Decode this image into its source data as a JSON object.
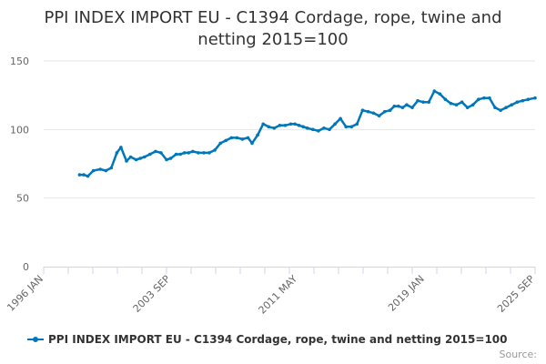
{
  "chart_data": {
    "type": "line",
    "title_line1": "PPI INDEX IMPORT EU - C1394 Cordage, rope, twine and",
    "title_line2": "netting 2015=100",
    "xlabel": "",
    "ylabel": "",
    "x_tick_labels": [
      "1996 JAN",
      "2003 SEP",
      "2011 MAY",
      "2019 JAN",
      "2025 SEP"
    ],
    "y_ticks": [
      0,
      50,
      100,
      150
    ],
    "ylim": [
      0,
      150
    ],
    "grid": "horizontal",
    "legend_placement": "bottom-left",
    "series": [
      {
        "name": "PPI INDEX IMPORT EU - C1394 Cordage, rope, twine and netting 2015=100",
        "color": "#0077bb",
        "x": [
          "1998-03",
          "1998-06",
          "1998-09",
          "1999-01",
          "1999-06",
          "1999-10",
          "2000-02",
          "2000-06",
          "2000-09",
          "2001-01",
          "2001-04",
          "2001-08",
          "2001-11",
          "2002-02",
          "2002-06",
          "2002-10",
          "2003-02",
          "2003-06",
          "2003-09",
          "2004-01",
          "2004-04",
          "2004-07",
          "2004-10",
          "2005-01",
          "2005-05",
          "2005-09",
          "2006-01",
          "2006-05",
          "2006-09",
          "2007-01",
          "2007-05",
          "2007-09",
          "2008-01",
          "2008-05",
          "2008-08",
          "2008-12",
          "2009-04",
          "2009-08",
          "2009-12",
          "2010-04",
          "2010-08",
          "2010-12",
          "2011-03",
          "2011-06",
          "2011-09",
          "2011-12",
          "2012-04",
          "2012-08",
          "2012-12",
          "2013-04",
          "2013-08",
          "2013-12",
          "2014-04",
          "2014-08",
          "2014-12",
          "2015-04",
          "2015-08",
          "2015-12",
          "2016-04",
          "2016-08",
          "2016-12",
          "2017-03",
          "2017-06",
          "2017-09",
          "2017-12",
          "2018-04",
          "2018-08",
          "2018-12",
          "2019-04",
          "2019-08",
          "2019-12",
          "2020-04",
          "2020-08",
          "2020-12",
          "2021-04",
          "2021-08",
          "2021-12",
          "2022-04",
          "2022-08",
          "2022-12",
          "2023-04",
          "2023-08",
          "2023-12",
          "2024-04",
          "2024-08",
          "2024-12",
          "2025-04",
          "2025-09"
        ],
        "y": [
          67,
          67,
          66,
          70,
          71,
          70,
          72,
          83,
          87,
          77,
          80,
          78,
          79,
          80,
          82,
          84,
          83,
          78,
          79,
          82,
          82,
          83,
          83,
          84,
          83,
          83,
          83,
          85,
          90,
          92,
          94,
          94,
          93,
          94,
          90,
          96,
          104,
          102,
          101,
          103,
          103,
          104,
          104,
          103,
          102,
          101,
          100,
          99,
          101,
          100,
          104,
          108,
          102,
          102,
          104,
          114,
          113,
          112,
          110,
          113,
          114,
          117,
          117,
          116,
          118,
          116,
          121,
          120,
          120,
          128,
          126,
          122,
          119,
          118,
          120,
          116,
          118,
          122,
          123,
          123,
          116,
          114,
          116,
          118,
          120,
          121,
          122,
          123
        ]
      }
    ]
  },
  "credits": "Source:"
}
